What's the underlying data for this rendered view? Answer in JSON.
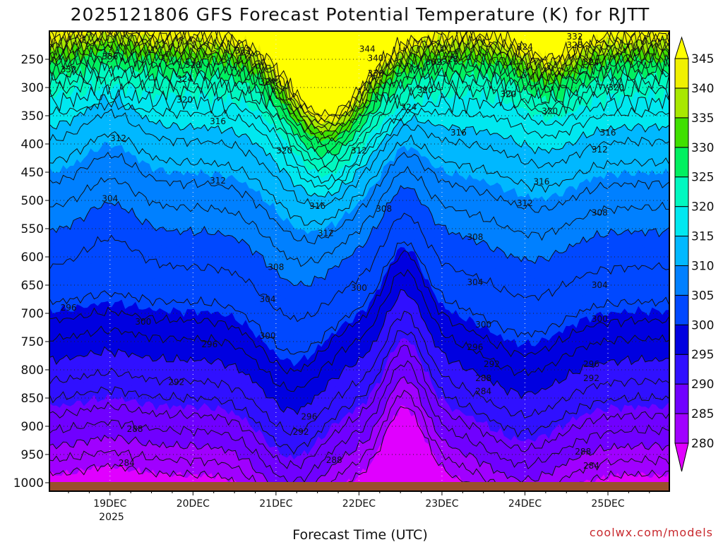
{
  "chart_data": {
    "type": "heatmap",
    "title": "2025121806 GFS Forecast Potential Temperature (K) for RJTT",
    "xlabel": "Forecast Time (UTC)",
    "ylabel": "",
    "x_ticks": [
      "19DEC",
      "20DEC",
      "21DEC",
      "22DEC",
      "23DEC",
      "24DEC",
      "25DEC"
    ],
    "x_year": "2025",
    "x_range_days": [
      18.27,
      25.74
    ],
    "y_ticks": [
      250,
      300,
      350,
      400,
      450,
      500,
      550,
      600,
      650,
      700,
      750,
      800,
      850,
      900,
      950,
      1000
    ],
    "y_unit": "hPa",
    "y_range": [
      200,
      1015
    ],
    "y_reversed": true,
    "colorbar": {
      "levels": [
        280,
        285,
        290,
        295,
        300,
        305,
        310,
        315,
        320,
        325,
        330,
        335,
        340,
        345
      ],
      "colors": [
        "#e000ff",
        "#a000ff",
        "#7000ff",
        "#3010ff",
        "#0000e0",
        "#0048ff",
        "#0080ff",
        "#00b8ff",
        "#00e8f0",
        "#00f8c0",
        "#00f060",
        "#40e000",
        "#a8e800",
        "#f0f000",
        "#ffff00"
      ],
      "extend": "both",
      "position": "right"
    },
    "contour_interval": 4,
    "contour_labels": [
      {
        "x": 19.0,
        "p": 245,
        "v": "336"
      },
      {
        "x": 18.5,
        "p": 268,
        "v": "332"
      },
      {
        "x": 20.6,
        "p": 235,
        "v": "332"
      },
      {
        "x": 20.0,
        "p": 260,
        "v": "328"
      },
      {
        "x": 19.9,
        "p": 285,
        "v": "324"
      },
      {
        "x": 20.9,
        "p": 290,
        "v": "324"
      },
      {
        "x": 18.2,
        "p": 305,
        "v": "316"
      },
      {
        "x": 19.9,
        "p": 322,
        "v": "320"
      },
      {
        "x": 20.3,
        "p": 360,
        "v": "316"
      },
      {
        "x": 19.1,
        "p": 390,
        "v": "312"
      },
      {
        "x": 21.1,
        "p": 412,
        "v": "320"
      },
      {
        "x": 22.1,
        "p": 232,
        "v": "344"
      },
      {
        "x": 22.2,
        "p": 248,
        "v": "340"
      },
      {
        "x": 22.2,
        "p": 275,
        "v": "336"
      },
      {
        "x": 22.9,
        "p": 255,
        "v": "332"
      },
      {
        "x": 23.1,
        "p": 250,
        "v": "328"
      },
      {
        "x": 22.6,
        "p": 335,
        "v": "324"
      },
      {
        "x": 22.8,
        "p": 305,
        "v": "320"
      },
      {
        "x": 24.0,
        "p": 228,
        "v": "324"
      },
      {
        "x": 23.8,
        "p": 312,
        "v": "320"
      },
      {
        "x": 24.3,
        "p": 342,
        "v": "320"
      },
      {
        "x": 25.1,
        "p": 300,
        "v": "320"
      },
      {
        "x": 24.8,
        "p": 255,
        "v": "324"
      },
      {
        "x": 24.6,
        "p": 210,
        "v": "332"
      },
      {
        "x": 24.6,
        "p": 225,
        "v": "328"
      },
      {
        "x": 23.2,
        "p": 380,
        "v": "316"
      },
      {
        "x": 25.0,
        "p": 380,
        "v": "316"
      },
      {
        "x": 24.9,
        "p": 410,
        "v": "312"
      },
      {
        "x": 22.0,
        "p": 412,
        "v": "312"
      },
      {
        "x": 20.3,
        "p": 465,
        "v": "312"
      },
      {
        "x": 24.2,
        "p": 467,
        "v": "316"
      },
      {
        "x": 21.5,
        "p": 510,
        "v": "316"
      },
      {
        "x": 21.6,
        "p": 558,
        "v": "312"
      },
      {
        "x": 22.3,
        "p": 515,
        "v": "308"
      },
      {
        "x": 24.0,
        "p": 505,
        "v": "312"
      },
      {
        "x": 24.9,
        "p": 522,
        "v": "308"
      },
      {
        "x": 19.0,
        "p": 497,
        "v": "304"
      },
      {
        "x": 23.4,
        "p": 565,
        "v": "308"
      },
      {
        "x": 21.0,
        "p": 618,
        "v": "308"
      },
      {
        "x": 23.4,
        "p": 645,
        "v": "304"
      },
      {
        "x": 24.9,
        "p": 650,
        "v": "304"
      },
      {
        "x": 22.0,
        "p": 655,
        "v": "300"
      },
      {
        "x": 20.9,
        "p": 675,
        "v": "304"
      },
      {
        "x": 18.5,
        "p": 690,
        "v": "296"
      },
      {
        "x": 19.4,
        "p": 715,
        "v": "300"
      },
      {
        "x": 20.9,
        "p": 740,
        "v": "300"
      },
      {
        "x": 20.2,
        "p": 755,
        "v": "296"
      },
      {
        "x": 23.5,
        "p": 720,
        "v": "300"
      },
      {
        "x": 24.9,
        "p": 710,
        "v": "300"
      },
      {
        "x": 23.4,
        "p": 760,
        "v": "296"
      },
      {
        "x": 23.6,
        "p": 790,
        "v": "292"
      },
      {
        "x": 24.8,
        "p": 790,
        "v": "296"
      },
      {
        "x": 24.8,
        "p": 815,
        "v": "292"
      },
      {
        "x": 19.8,
        "p": 822,
        "v": "292"
      },
      {
        "x": 23.5,
        "p": 815,
        "v": "288"
      },
      {
        "x": 23.5,
        "p": 838,
        "v": "284"
      },
      {
        "x": 21.4,
        "p": 883,
        "v": "296"
      },
      {
        "x": 21.3,
        "p": 910,
        "v": "292"
      },
      {
        "x": 19.3,
        "p": 905,
        "v": "288"
      },
      {
        "x": 21.7,
        "p": 960,
        "v": "288"
      },
      {
        "x": 19.2,
        "p": 965,
        "v": "284"
      },
      {
        "x": 24.7,
        "p": 945,
        "v": "288"
      },
      {
        "x": 24.8,
        "p": 970,
        "v": "284"
      }
    ]
  },
  "credit": "coolwx.com/models"
}
